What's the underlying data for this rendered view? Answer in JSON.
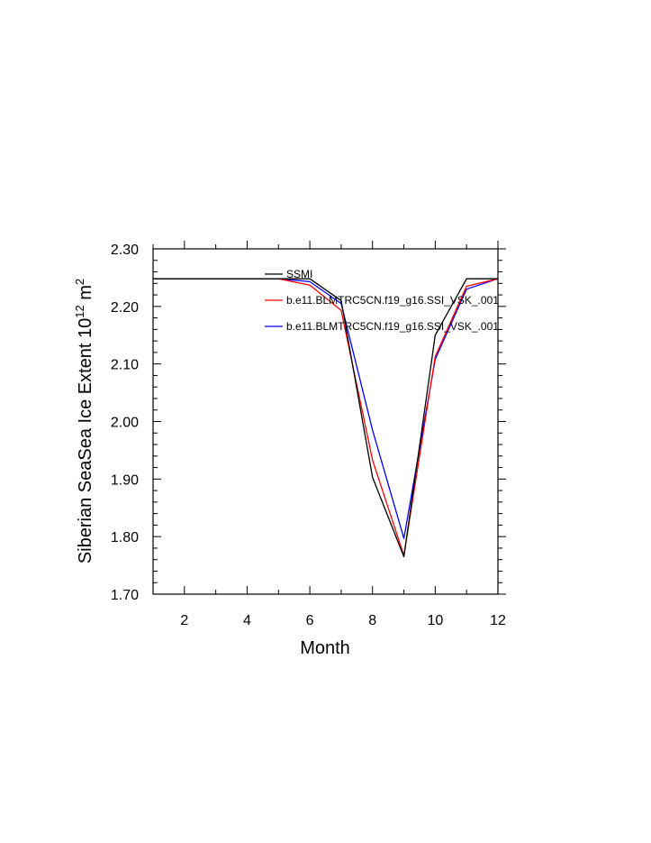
{
  "chart_data": {
    "type": "line",
    "xlabel": "Month",
    "ylabel": {
      "prefix": "Siberian SeaSea Ice Extent 10",
      "superscript": "12",
      "unit": " m",
      "unit_superscript": "2"
    },
    "xlim": [
      1,
      12
    ],
    "ylim": [
      1.7,
      2.3
    ],
    "x_ticks": [
      2,
      4,
      6,
      8,
      10,
      12
    ],
    "y_ticks": [
      1.7,
      1.8,
      1.9,
      2.0,
      2.1,
      2.2,
      2.3
    ],
    "y_tick_labels": [
      "1.70",
      "1.80",
      "1.90",
      "2.00",
      "2.10",
      "2.20",
      "2.30"
    ],
    "grid": false,
    "legend_position": "top-right",
    "x": [
      1,
      2,
      3,
      4,
      5,
      6,
      7,
      8,
      9,
      10,
      11,
      12
    ],
    "series": [
      {
        "name": "SSMI",
        "color": "#000000",
        "values": [
          2.248,
          2.248,
          2.248,
          2.248,
          2.248,
          2.248,
          2.21,
          1.903,
          1.765,
          2.15,
          2.248,
          2.248
        ]
      },
      {
        "name": "b.e11.BLMTRC5CN.f19_g16.SSI_VSK_.001",
        "color": "#ff0000",
        "values": [
          2.248,
          2.248,
          2.248,
          2.248,
          2.248,
          2.237,
          2.193,
          1.933,
          1.767,
          2.113,
          2.235,
          2.248
        ]
      },
      {
        "name": "b.e11.BLMTRC5CN.f19_g16.SSI_VSK_.001",
        "color": "#0000ff",
        "values": [
          2.248,
          2.248,
          2.248,
          2.248,
          2.248,
          2.243,
          2.205,
          1.985,
          1.797,
          2.108,
          2.23,
          2.248
        ]
      }
    ]
  }
}
